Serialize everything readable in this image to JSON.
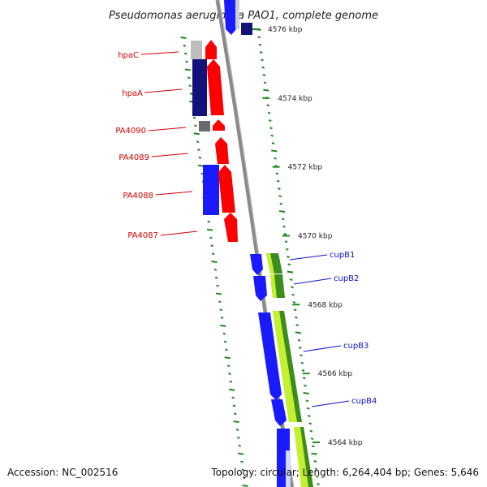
{
  "title": "Pseudomonas aeruginosa PAO1, complete genome",
  "footer": {
    "accession": "Accession: NC_002516",
    "summary": "Topology: circular; Length: 6,264,404 bp; Genes: 5,646"
  },
  "scale": {
    "unit": "kbp",
    "ticks": [
      "4576 kbp",
      "4574 kbp",
      "4572 kbp",
      "4570 kbp",
      "4568 kbp",
      "4566 kbp",
      "4564 kbp"
    ]
  },
  "colors": {
    "backbone": "#8a8a8a",
    "tick_marks": "#1f8a1f",
    "forward_gene": "#ff0000",
    "reverse_gene_blue": "#1a1aff",
    "reverse_gene_navy": "#12127a",
    "pseudo_gene": "#bdbdbd",
    "pseudo_gene_dark": "#6b6b6b",
    "feature_green": "#3c8c1e",
    "feature_lime": "#c4f030",
    "label_red": "#d40000",
    "label_blue": "#1010c8"
  },
  "gene_labels": {
    "left": [
      {
        "name": "hpaC",
        "color": "label_red"
      },
      {
        "name": "hpaA",
        "color": "label_red"
      },
      {
        "name": "PA4090",
        "color": "label_red"
      },
      {
        "name": "PA4089",
        "color": "label_red"
      },
      {
        "name": "PA4088",
        "color": "label_red"
      },
      {
        "name": "PA4087",
        "color": "label_red"
      }
    ],
    "right": [
      {
        "name": "cupB1",
        "color": "label_blue"
      },
      {
        "name": "cupB2",
        "color": "label_blue"
      },
      {
        "name": "cupB3",
        "color": "label_blue"
      },
      {
        "name": "cupB4",
        "color": "label_blue"
      }
    ]
  }
}
